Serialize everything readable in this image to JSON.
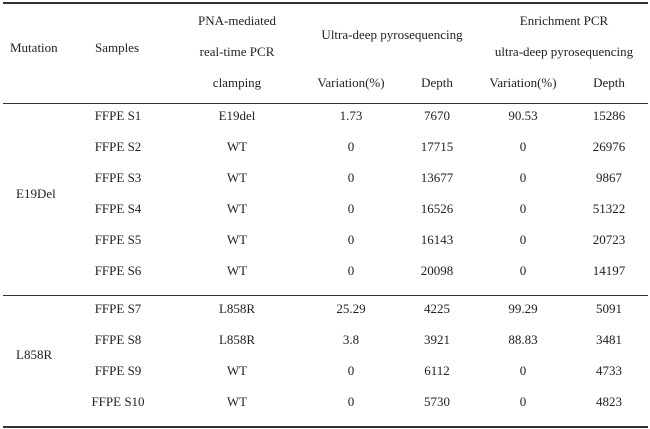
{
  "header": {
    "mutation": "Mutation",
    "samples": "Samples",
    "pna_line1": "PNA-mediated",
    "pna_line2": "real-time PCR",
    "pna_line3": "clamping",
    "ultra": "Ultra-deep pyrosequencing",
    "enrich_line1": "Enrichment PCR",
    "enrich_line2": "ultra-deep pyrosequencing",
    "variation": "Variation(%)",
    "depth": "Depth",
    "variation2": "Variation(%)",
    "depth2": "Depth"
  },
  "groups": [
    {
      "mutation": "E19Del"
    },
    {
      "mutation": "L858R"
    }
  ],
  "rows": [
    {
      "sample": "FFPE S1",
      "pna": "E19del",
      "ud_var": "1.73",
      "ud_depth": "7670",
      "en_var": "90.53",
      "en_depth": "15286"
    },
    {
      "sample": "FFPE S2",
      "pna": "WT",
      "ud_var": "0",
      "ud_depth": "17715",
      "en_var": "0",
      "en_depth": "26976"
    },
    {
      "sample": "FFPE S3",
      "pna": "WT",
      "ud_var": "0",
      "ud_depth": "13677",
      "en_var": "0",
      "en_depth": "9867"
    },
    {
      "sample": "FFPE S4",
      "pna": "WT",
      "ud_var": "0",
      "ud_depth": "16526",
      "en_var": "0",
      "en_depth": "51322"
    },
    {
      "sample": "FFPE S5",
      "pna": "WT",
      "ud_var": "0",
      "ud_depth": "16143",
      "en_var": "0",
      "en_depth": "20723"
    },
    {
      "sample": "FFPE S6",
      "pna": "WT",
      "ud_var": "0",
      "ud_depth": "20098",
      "en_var": "0",
      "en_depth": "14197"
    },
    {
      "sample": "FFPE S7",
      "pna": "L858R",
      "ud_var": "25.29",
      "ud_depth": "4225",
      "en_var": "99.29",
      "en_depth": "5091"
    },
    {
      "sample": "FFPE S8",
      "pna": "L858R",
      "ud_var": "3.8",
      "ud_depth": "3921",
      "en_var": "88.83",
      "en_depth": "3481"
    },
    {
      "sample": "FFPE S9",
      "pna": "WT",
      "ud_var": "0",
      "ud_depth": "6112",
      "en_var": "0",
      "en_depth": "4733"
    },
    {
      "sample": "FFPE S10",
      "pna": "WT",
      "ud_var": "0",
      "ud_depth": "5730",
      "en_var": "0",
      "en_depth": "4823"
    }
  ]
}
